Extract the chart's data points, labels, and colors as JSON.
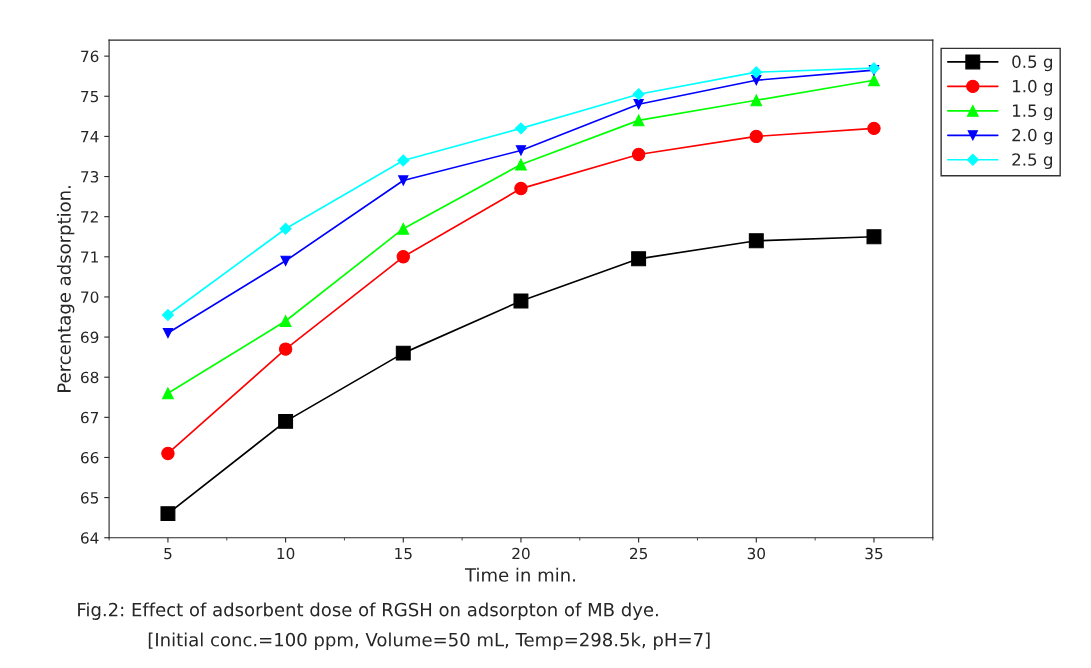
{
  "chart_data": {
    "type": "line",
    "xlabel": "Time in min.",
    "ylabel": "Percentage adsorption.",
    "annotations": [
      "Fig.2: Effect of adsorbent dose of RGSH on adsorpton of MB dye.",
      "[Initial conc.=100 ppm, Volume=50 mL, Temp=298.5k, pH=7]"
    ],
    "x": [
      5,
      10,
      15,
      20,
      25,
      30,
      35
    ],
    "series": [
      {
        "name": "0.5 g",
        "color": "#000000",
        "marker": "square",
        "values": [
          64.6,
          66.9,
          68.6,
          69.9,
          70.95,
          71.4,
          71.5
        ]
      },
      {
        "name": "1.0 g",
        "color": "#ff0000",
        "marker": "circle",
        "values": [
          66.1,
          68.7,
          71.0,
          72.7,
          73.55,
          74.0,
          74.2
        ]
      },
      {
        "name": "1.5 g",
        "color": "#00ff00",
        "marker": "triangle",
        "values": [
          67.6,
          69.4,
          71.7,
          73.3,
          74.4,
          74.9,
          75.4
        ]
      },
      {
        "name": "2.0 g",
        "color": "#0000ff",
        "marker": "triangle_down",
        "values": [
          69.1,
          70.9,
          72.9,
          73.65,
          74.8,
          75.4,
          75.65
        ]
      },
      {
        "name": "2.5 g",
        "color": "#00ffff",
        "marker": "diamond",
        "values": [
          69.55,
          71.7,
          73.4,
          74.2,
          75.05,
          75.6,
          75.7
        ]
      }
    ],
    "xlim": [
      2.5,
      37.5
    ],
    "ylim": [
      64,
      76.4
    ],
    "xticks": [
      5,
      10,
      15,
      20,
      25,
      30,
      35
    ],
    "yticks": [
      64,
      65,
      66,
      67,
      68,
      69,
      70,
      71,
      72,
      73,
      74,
      75,
      76
    ],
    "grid": false,
    "legend": "top right",
    "line_style": "solid"
  }
}
